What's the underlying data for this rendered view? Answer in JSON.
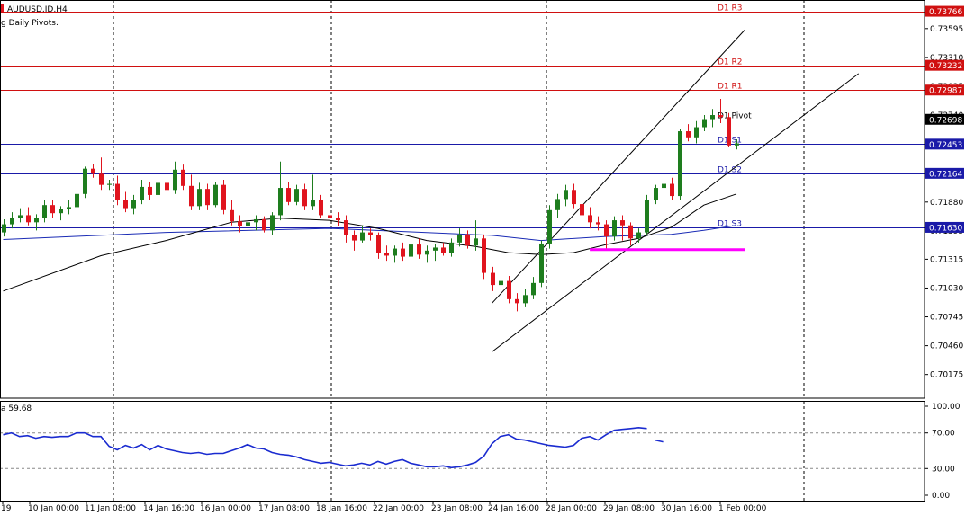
{
  "header": {
    "symbol_line": "AUDUSD.ID,H4",
    "indicator_line": "g Daily Pivots."
  },
  "rsi_label": "59.68",
  "colors": {
    "bull": "#1e7d1e",
    "bear": "#e0141e",
    "resistance": "#d01010",
    "support": "#1a1aa8",
    "pivot": "#000000",
    "ma_fast": "#000000",
    "ma_slow": "#1a2bb5",
    "rsi": "#1a2bd0",
    "highlight": "#ff00ff",
    "grid": "#000000"
  },
  "chart_data": {
    "type": "candlestick",
    "symbol": "AUDUSD.ID",
    "timeframe": "H4",
    "y_axis": {
      "min": 0.6995,
      "max": 0.7386,
      "ticks": [
        "0.73595",
        "0.73310",
        "0.73025",
        "0.72740",
        "0.72450",
        "0.72164",
        "0.71880",
        "0.71595",
        "0.71315",
        "0.71030",
        "0.70745",
        "0.70460",
        "0.70175"
      ]
    },
    "x_labels": [
      "19",
      "10 Jan 00:00",
      "11 Jan 08:00",
      "14 Jan 16:00",
      "16 Jan 00:00",
      "17 Jan 08:00",
      "18 Jan 16:00",
      "22 Jan 00:00",
      "23 Jan 08:00",
      "24 Jan 16:00",
      "28 Jan 00:00",
      "29 Jan 08:00",
      "30 Jan 16:00",
      "1 Feb 00:00"
    ],
    "pivots": [
      {
        "name": "D1 R3",
        "value": 0.73766,
        "price_label": "0.73766",
        "type": "resistance"
      },
      {
        "name": "D1 R2",
        "value": 0.73232,
        "price_label": "0.73232",
        "type": "resistance"
      },
      {
        "name": "D1 R1",
        "value": 0.72987,
        "price_label": "0.72987",
        "type": "resistance"
      },
      {
        "name": "D1 Pivot",
        "value": 0.72698,
        "price_label": "0.72698",
        "type": "pivot"
      },
      {
        "name": "D1 S1",
        "value": 0.72453,
        "price_label": "0.72453",
        "type": "support"
      },
      {
        "name": "D1 S2",
        "value": 0.72164,
        "price_label": "0.72164",
        "type": "support"
      },
      {
        "name": "D1 S3",
        "value": 0.7163,
        "price_label": "0.71630",
        "type": "support"
      }
    ],
    "candles": [
      [
        0.7158,
        0.7171,
        0.7154,
        0.7166
      ],
      [
        0.7166,
        0.7178,
        0.7162,
        0.7172
      ],
      [
        0.7172,
        0.7182,
        0.7168,
        0.7175
      ],
      [
        0.7175,
        0.7183,
        0.7165,
        0.7168
      ],
      [
        0.7168,
        0.7176,
        0.716,
        0.7172
      ],
      [
        0.7172,
        0.719,
        0.7168,
        0.7185
      ],
      [
        0.7185,
        0.719,
        0.7172,
        0.7177
      ],
      [
        0.7177,
        0.7184,
        0.717,
        0.7181
      ],
      [
        0.7181,
        0.719,
        0.7176,
        0.7183
      ],
      [
        0.7183,
        0.72,
        0.7178,
        0.7196
      ],
      [
        0.7196,
        0.7223,
        0.7192,
        0.7221
      ],
      [
        0.7221,
        0.7226,
        0.7212,
        0.7216
      ],
      [
        0.7216,
        0.7232,
        0.72,
        0.7205
      ],
      [
        0.7205,
        0.721,
        0.72,
        0.7206
      ],
      [
        0.7206,
        0.7214,
        0.7185,
        0.719
      ],
      [
        0.719,
        0.7198,
        0.7178,
        0.7182
      ],
      [
        0.7182,
        0.7195,
        0.7176,
        0.719
      ],
      [
        0.719,
        0.721,
        0.7186,
        0.7203
      ],
      [
        0.7203,
        0.7208,
        0.719,
        0.7195
      ],
      [
        0.7195,
        0.721,
        0.719,
        0.7207
      ],
      [
        0.7207,
        0.7216,
        0.7198,
        0.72
      ],
      [
        0.72,
        0.7228,
        0.7196,
        0.722
      ],
      [
        0.722,
        0.7225,
        0.72,
        0.7204
      ],
      [
        0.7204,
        0.7215,
        0.718,
        0.7184
      ],
      [
        0.7184,
        0.7207,
        0.718,
        0.7201
      ],
      [
        0.7201,
        0.7206,
        0.718,
        0.7185
      ],
      [
        0.7185,
        0.7208,
        0.7183,
        0.7205
      ],
      [
        0.7205,
        0.721,
        0.7176,
        0.718
      ],
      [
        0.718,
        0.719,
        0.7165,
        0.7169
      ],
      [
        0.7169,
        0.7175,
        0.7158,
        0.7164
      ],
      [
        0.7164,
        0.7172,
        0.7155,
        0.7168
      ],
      [
        0.7168,
        0.7175,
        0.716,
        0.7171
      ],
      [
        0.7171,
        0.7174,
        0.7158,
        0.716
      ],
      [
        0.716,
        0.7178,
        0.7155,
        0.7175
      ],
      [
        0.7175,
        0.7228,
        0.717,
        0.7202
      ],
      [
        0.7202,
        0.7208,
        0.7185,
        0.7188
      ],
      [
        0.7188,
        0.7205,
        0.7185,
        0.7201
      ],
      [
        0.7201,
        0.7206,
        0.718,
        0.7184
      ],
      [
        0.7184,
        0.7215,
        0.718,
        0.719
      ],
      [
        0.719,
        0.7195,
        0.7172,
        0.7175
      ],
      [
        0.7175,
        0.718,
        0.7165,
        0.7172
      ],
      [
        0.7172,
        0.7178,
        0.7164,
        0.717
      ],
      [
        0.717,
        0.7175,
        0.7148,
        0.7155
      ],
      [
        0.7155,
        0.716,
        0.714,
        0.715
      ],
      [
        0.715,
        0.7165,
        0.7148,
        0.7158
      ],
      [
        0.7158,
        0.7162,
        0.715,
        0.7155
      ],
      [
        0.7155,
        0.7158,
        0.7132,
        0.7138
      ],
      [
        0.7138,
        0.7145,
        0.713,
        0.7135
      ],
      [
        0.7135,
        0.7145,
        0.7128,
        0.7142
      ],
      [
        0.7142,
        0.7148,
        0.713,
        0.7134
      ],
      [
        0.7134,
        0.715,
        0.713,
        0.7146
      ],
      [
        0.7146,
        0.7152,
        0.7132,
        0.7136
      ],
      [
        0.7136,
        0.7145,
        0.7128,
        0.714
      ],
      [
        0.714,
        0.7147,
        0.713,
        0.7143
      ],
      [
        0.7143,
        0.7148,
        0.7135,
        0.7138
      ],
      [
        0.7138,
        0.7152,
        0.7134,
        0.7148
      ],
      [
        0.7148,
        0.7162,
        0.7144,
        0.7156
      ],
      [
        0.7156,
        0.716,
        0.7142,
        0.7145
      ],
      [
        0.7145,
        0.717,
        0.714,
        0.7152
      ],
      [
        0.7152,
        0.7156,
        0.7112,
        0.7118
      ],
      [
        0.7118,
        0.7124,
        0.71,
        0.7106
      ],
      [
        0.7106,
        0.7112,
        0.709,
        0.711
      ],
      [
        0.711,
        0.7115,
        0.7088,
        0.7092
      ],
      [
        0.7092,
        0.7098,
        0.708,
        0.7088
      ],
      [
        0.7088,
        0.7102,
        0.7084,
        0.7096
      ],
      [
        0.7096,
        0.7114,
        0.7092,
        0.7108
      ],
      [
        0.7108,
        0.715,
        0.7104,
        0.7147
      ],
      [
        0.7147,
        0.7185,
        0.7142,
        0.718
      ],
      [
        0.718,
        0.7196,
        0.7172,
        0.7191
      ],
      [
        0.7191,
        0.7205,
        0.7184,
        0.72
      ],
      [
        0.72,
        0.7206,
        0.7182,
        0.7186
      ],
      [
        0.7186,
        0.7192,
        0.717,
        0.7175
      ],
      [
        0.7175,
        0.7183,
        0.7162,
        0.7168
      ],
      [
        0.7168,
        0.7174,
        0.716,
        0.7166
      ],
      [
        0.7166,
        0.717,
        0.714,
        0.7154
      ],
      [
        0.7154,
        0.7174,
        0.715,
        0.717
      ],
      [
        0.717,
        0.7175,
        0.715,
        0.7165
      ],
      [
        0.7165,
        0.7168,
        0.7145,
        0.7152
      ],
      [
        0.7152,
        0.7162,
        0.7148,
        0.7158
      ],
      [
        0.7158,
        0.7195,
        0.7155,
        0.719
      ],
      [
        0.719,
        0.7205,
        0.7186,
        0.7202
      ],
      [
        0.7202,
        0.721,
        0.7194,
        0.7206
      ],
      [
        0.7206,
        0.7212,
        0.719,
        0.7194
      ],
      [
        0.7194,
        0.726,
        0.719,
        0.7258
      ],
      [
        0.7258,
        0.7265,
        0.7248,
        0.7252
      ],
      [
        0.7252,
        0.7268,
        0.7246,
        0.7262
      ],
      [
        0.7262,
        0.7274,
        0.7258,
        0.727
      ],
      [
        0.727,
        0.728,
        0.7262,
        0.7274
      ],
      [
        0.7274,
        0.729,
        0.7266,
        0.7272
      ],
      [
        0.7272,
        0.7276,
        0.7242,
        0.7244
      ],
      [
        0.7244,
        0.725,
        0.724,
        0.7246
      ]
    ],
    "ma_fast": [
      [
        0,
        0.71
      ],
      [
        12,
        0.7135
      ],
      [
        20,
        0.715
      ],
      [
        28,
        0.7168
      ],
      [
        34,
        0.7172
      ],
      [
        40,
        0.717
      ],
      [
        46,
        0.7162
      ],
      [
        52,
        0.715
      ],
      [
        58,
        0.7144
      ],
      [
        62,
        0.7138
      ],
      [
        66,
        0.7136
      ],
      [
        70,
        0.7138
      ],
      [
        74,
        0.7146
      ],
      [
        78,
        0.7152
      ],
      [
        82,
        0.7163
      ],
      [
        86,
        0.7185
      ],
      [
        90,
        0.7196
      ]
    ],
    "ma_slow": [
      [
        0,
        0.7151
      ],
      [
        20,
        0.7158
      ],
      [
        40,
        0.7162
      ],
      [
        60,
        0.7155
      ],
      [
        66,
        0.715
      ],
      [
        74,
        0.7154
      ],
      [
        82,
        0.7156
      ],
      [
        86,
        0.716
      ],
      [
        90,
        0.7165
      ]
    ],
    "channel": {
      "upper": [
        [
          60,
          0.7088
        ],
        [
          91,
          0.7358
        ]
      ],
      "lower": [
        [
          60,
          0.704
        ],
        [
          105,
          0.7315
        ]
      ]
    },
    "highlight_level": {
      "value": 0.7141,
      "from": 72,
      "to": 91
    },
    "rsi": {
      "label": "59.68",
      "y_ticks": [
        "100.00",
        "70.00",
        "30.00",
        "0.00"
      ],
      "levels": [
        70,
        30
      ],
      "values": [
        68,
        70,
        66,
        67,
        64,
        66,
        65,
        66,
        66,
        70,
        70,
        66,
        66,
        55,
        51,
        56,
        53,
        57,
        51,
        56,
        52,
        50,
        48,
        47,
        48,
        46,
        47,
        47,
        50,
        53,
        57,
        53,
        52,
        48,
        46,
        45,
        43,
        40,
        38,
        36,
        37,
        35,
        33,
        34,
        36,
        34,
        38,
        35,
        38,
        40,
        36,
        34,
        32,
        32,
        33,
        31,
        32,
        34,
        37,
        44,
        58,
        66,
        68,
        63,
        62,
        60,
        58,
        56,
        55,
        54,
        56,
        64,
        66,
        62,
        68,
        73,
        74,
        75,
        76,
        75,
        62,
        60
      ]
    }
  }
}
